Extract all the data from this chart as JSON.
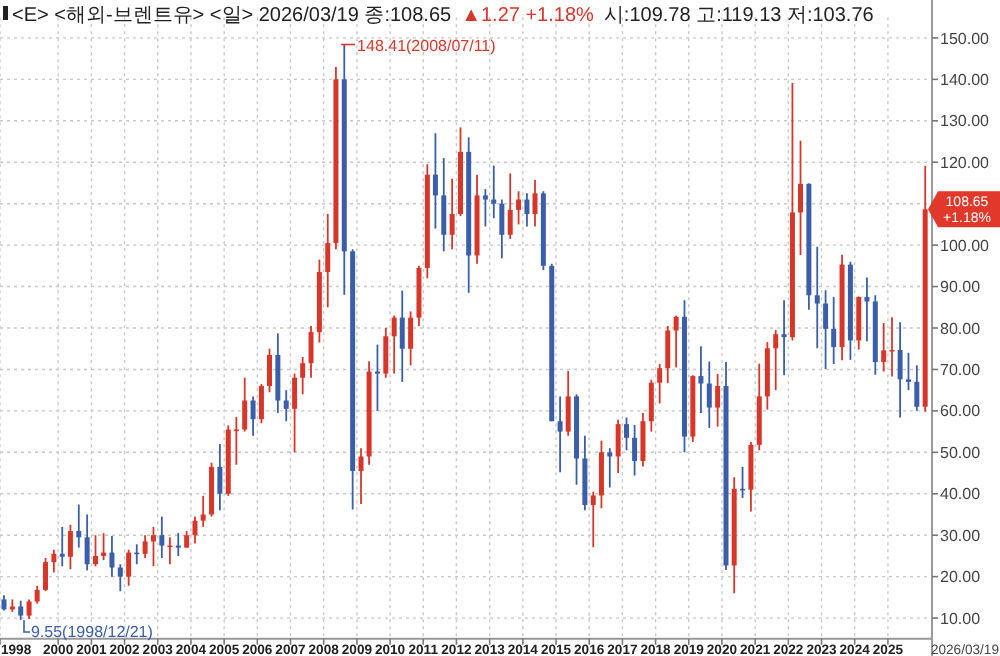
{
  "chart_data": {
    "type": "candlestick",
    "title": "<E> <해외-브렌트유> <일> 2026/03/19 종:108.65",
    "annotations": [
      "▲1.27 +1.18%",
      "시:109.78 고:119.13 저:103.76",
      "2026/03/19",
      {
        "text": "148.41(2008/07/11)",
        "x": "2008-07-11",
        "y": 148.41
      },
      {
        "text": "9.55(1998/12/21)",
        "x": "1998-12-21",
        "y": 9.55
      },
      {
        "text": "108.65 +1.18%",
        "x": "2026-03-19",
        "y": 108.65
      }
    ],
    "x": [
      "1998-05-15",
      "1998-08-15",
      "1998-11-15",
      "1999-02-15",
      "1999-05-15",
      "1999-08-15",
      "1999-11-15",
      "2000-02-15",
      "2000-05-15",
      "2000-08-15",
      "2000-11-15",
      "2001-02-15",
      "2001-05-15",
      "2001-08-15",
      "2001-11-15",
      "2002-02-15",
      "2002-05-15",
      "2002-08-15",
      "2002-11-15",
      "2003-02-15",
      "2003-05-15",
      "2003-08-15",
      "2003-11-15",
      "2004-02-15",
      "2004-05-15",
      "2004-08-15",
      "2004-11-15",
      "2005-02-15",
      "2005-05-15",
      "2005-08-15",
      "2005-11-15",
      "2006-02-15",
      "2006-05-15",
      "2006-08-15",
      "2006-11-15",
      "2007-02-15",
      "2007-05-15",
      "2007-08-15",
      "2007-11-15",
      "2008-02-15",
      "2008-05-15",
      "2008-08-15",
      "2008-11-15",
      "2009-02-15",
      "2009-05-15",
      "2009-08-15",
      "2009-11-15",
      "2010-02-15",
      "2010-05-15",
      "2010-08-15",
      "2010-11-15",
      "2011-02-15",
      "2011-05-15",
      "2011-08-15",
      "2011-11-15",
      "2012-02-15",
      "2012-05-15",
      "2012-08-15",
      "2012-11-15",
      "2013-02-15",
      "2013-05-15",
      "2013-08-15",
      "2013-11-15",
      "2014-02-15",
      "2014-05-15",
      "2014-08-15",
      "2014-11-15",
      "2015-02-15",
      "2015-05-15",
      "2015-08-15",
      "2015-11-15",
      "2016-02-15",
      "2016-05-15",
      "2016-08-15",
      "2016-11-15",
      "2017-02-15",
      "2017-05-15",
      "2017-08-15",
      "2017-11-15",
      "2018-02-15",
      "2018-05-15",
      "2018-08-15",
      "2018-11-15",
      "2019-02-15",
      "2019-05-15",
      "2019-08-15",
      "2019-11-15",
      "2020-02-15",
      "2020-05-15",
      "2020-08-15",
      "2020-11-15",
      "2021-02-15",
      "2021-05-15",
      "2021-08-15",
      "2021-11-15",
      "2022-02-15",
      "2022-05-15",
      "2022-08-15",
      "2022-11-15",
      "2023-02-15",
      "2023-05-15",
      "2023-08-15",
      "2023-11-15",
      "2024-02-15",
      "2024-05-15",
      "2024-08-15",
      "2024-11-15",
      "2025-02-15",
      "2025-05-15",
      "2025-08-15",
      "2025-11-15",
      "2026-02-15"
    ],
    "ohlc": [
      [
        14.5,
        15.5,
        11.8,
        12.1
      ],
      [
        12.1,
        14.5,
        11.5,
        12.8
      ],
      [
        12.8,
        14.2,
        9.55,
        10.6
      ],
      [
        10.6,
        14.5,
        9.8,
        14.0
      ],
      [
        14.0,
        17.8,
        13.5,
        16.8
      ],
      [
        16.8,
        24.5,
        16.5,
        23.5
      ],
      [
        23.5,
        26.5,
        21.0,
        25.5
      ],
      [
        25.5,
        32.0,
        22.5,
        24.8
      ],
      [
        24.8,
        32.5,
        21.8,
        31.0
      ],
      [
        31.0,
        37.4,
        27.0,
        29.5
      ],
      [
        29.5,
        35.0,
        21.5,
        23.0
      ],
      [
        23.0,
        30.0,
        22.5,
        25.0
      ],
      [
        25.0,
        30.5,
        24.0,
        25.8
      ],
      [
        25.8,
        29.8,
        20.0,
        22.2
      ],
      [
        22.2,
        23.0,
        16.5,
        20.0
      ],
      [
        20.0,
        26.5,
        17.8,
        25.8
      ],
      [
        25.8,
        27.8,
        23.0,
        25.5
      ],
      [
        25.5,
        30.0,
        24.5,
        28.5
      ],
      [
        28.5,
        32.0,
        22.5,
        30.0
      ],
      [
        30.0,
        34.5,
        24.5,
        27.5
      ],
      [
        27.5,
        29.5,
        23.0,
        27.5
      ],
      [
        27.5,
        30.5,
        25.0,
        27.0
      ],
      [
        27.0,
        31.0,
        27.0,
        30.0
      ],
      [
        30.0,
        34.5,
        28.0,
        33.5
      ],
      [
        33.5,
        39.5,
        32.0,
        35.0
      ],
      [
        35.0,
        47.5,
        34.5,
        46.5
      ],
      [
        46.5,
        52.0,
        36.0,
        40.0
      ],
      [
        40.0,
        56.5,
        39.5,
        55.5
      ],
      [
        55.5,
        58.5,
        47.0,
        55.5
      ],
      [
        55.5,
        68.0,
        55.0,
        62.5
      ],
      [
        62.5,
        63.5,
        54.0,
        58.0
      ],
      [
        58.0,
        66.5,
        57.0,
        66.0
      ],
      [
        66.0,
        75.0,
        64.5,
        73.5
      ],
      [
        73.5,
        78.7,
        59.5,
        62.5
      ],
      [
        62.5,
        65.0,
        57.5,
        60.5
      ],
      [
        60.5,
        69.0,
        50.0,
        68.0
      ],
      [
        68.0,
        73.0,
        64.0,
        71.5
      ],
      [
        71.5,
        80.5,
        68.0,
        79.0
      ],
      [
        79.0,
        96.5,
        76.5,
        93.5
      ],
      [
        93.5,
        107.5,
        85.0,
        100.5
      ],
      [
        100.5,
        143.0,
        99.0,
        140.0
      ],
      [
        140.0,
        148.41,
        88.0,
        98.5
      ],
      [
        98.5,
        99.0,
        36.2,
        45.5
      ],
      [
        45.5,
        51.0,
        37.5,
        49.0
      ],
      [
        49.0,
        72.0,
        47.0,
        69.5
      ],
      [
        69.5,
        76.0,
        60.0,
        69.0
      ],
      [
        69.0,
        80.0,
        68.0,
        78.0
      ],
      [
        78.0,
        83.0,
        69.0,
        82.5
      ],
      [
        82.5,
        89.0,
        67.0,
        75.0
      ],
      [
        75.0,
        84.0,
        71.0,
        82.5
      ],
      [
        82.5,
        95.0,
        80.5,
        94.5
      ],
      [
        94.5,
        119.5,
        92.0,
        117.0
      ],
      [
        117.0,
        127.0,
        104.0,
        112.0
      ],
      [
        112.0,
        121.0,
        98.5,
        102.5
      ],
      [
        102.5,
        116.0,
        99.0,
        107.5
      ],
      [
        107.5,
        128.4,
        107.0,
        122.5
      ],
      [
        122.5,
        126.0,
        88.5,
        97.5
      ],
      [
        97.5,
        117.0,
        95.5,
        112.0
      ],
      [
        112.0,
        113.5,
        104.5,
        111.0
      ],
      [
        111.0,
        119.2,
        106.5,
        110.0
      ],
      [
        110.0,
        111.0,
        96.8,
        102.5
      ],
      [
        102.5,
        117.3,
        101.5,
        108.5
      ],
      [
        108.5,
        113.0,
        105.0,
        111.0
      ],
      [
        111.0,
        112.5,
        104.5,
        107.5
      ],
      [
        107.5,
        115.7,
        104.5,
        112.5
      ],
      [
        112.5,
        113.0,
        94.0,
        95.0
      ],
      [
        95.0,
        95.5,
        57.5,
        57.5
      ],
      [
        57.5,
        63.5,
        45.2,
        55.0
      ],
      [
        55.0,
        69.6,
        54.0,
        63.5
      ],
      [
        63.5,
        64.0,
        42.2,
        48.5
      ],
      [
        48.5,
        54.0,
        36.0,
        37.3
      ],
      [
        37.3,
        40.5,
        27.1,
        39.6
      ],
      [
        39.6,
        52.8,
        36.5,
        50.0
      ],
      [
        50.0,
        51.0,
        41.5,
        49.0
      ],
      [
        49.0,
        57.9,
        45.0,
        56.8
      ],
      [
        56.8,
        58.4,
        50.5,
        53.5
      ],
      [
        53.5,
        56.6,
        44.4,
        47.9
      ],
      [
        47.9,
        59.5,
        46.6,
        57.5
      ],
      [
        57.5,
        67.5,
        55.0,
        66.8
      ],
      [
        66.8,
        71.3,
        61.8,
        70.3
      ],
      [
        70.3,
        80.5,
        66.7,
        79.4
      ],
      [
        79.4,
        83.0,
        70.5,
        82.7
      ],
      [
        82.7,
        86.7,
        50.0,
        53.8
      ],
      [
        53.8,
        68.6,
        52.5,
        68.4
      ],
      [
        68.4,
        75.6,
        59.5,
        66.6
      ],
      [
        66.6,
        71.9,
        55.9,
        60.8
      ],
      [
        60.8,
        68.9,
        56.2,
        66.0
      ],
      [
        66.0,
        71.8,
        21.6,
        22.7
      ],
      [
        22.7,
        44.0,
        16.0,
        41.2
      ],
      [
        41.2,
        46.5,
        39.0,
        41.0
      ],
      [
        41.0,
        52.5,
        35.7,
        51.8
      ],
      [
        51.8,
        71.4,
        50.5,
        63.5
      ],
      [
        63.5,
        76.6,
        60.3,
        75.1
      ],
      [
        75.1,
        79.5,
        65.0,
        78.5
      ],
      [
        78.5,
        86.7,
        68.6,
        77.8
      ],
      [
        77.8,
        139.13,
        77.0,
        107.9
      ],
      [
        107.9,
        125.2,
        97.6,
        114.8
      ],
      [
        114.8,
        114.9,
        84.4,
        87.9
      ],
      [
        87.9,
        99.6,
        75.1,
        85.9
      ],
      [
        85.9,
        89.1,
        70.1,
        79.8
      ],
      [
        79.8,
        87.5,
        71.3,
        75.4
      ],
      [
        75.4,
        97.7,
        72.2,
        95.3
      ],
      [
        95.3,
        96.0,
        72.3,
        77.0
      ],
      [
        77.0,
        87.6,
        74.8,
        87.5
      ],
      [
        87.5,
        92.2,
        76.8,
        86.4
      ],
      [
        86.4,
        87.9,
        68.7,
        71.8
      ],
      [
        71.8,
        81.2,
        69.5,
        74.6
      ],
      [
        74.6,
        82.6,
        68.3,
        74.7
      ],
      [
        74.7,
        81.4,
        58.4,
        67.6
      ],
      [
        67.6,
        74.0,
        65.0,
        67.0
      ],
      [
        67.0,
        71.0,
        60.0,
        61.0
      ],
      [
        61.0,
        119.13,
        59.8,
        108.65
      ]
    ],
    "colors": [
      "#3b5ea8",
      "#d7372b",
      "#3b5ea8",
      "#d7372b",
      "#d7372b",
      "#d7372b",
      "#d7372b",
      "#3b5ea8",
      "#d7372b",
      "#3b5ea8",
      "#3b5ea8",
      "#d7372b",
      "#d7372b",
      "#3b5ea8",
      "#3b5ea8",
      "#d7372b",
      "#3b5ea8",
      "#d7372b",
      "#d7372b",
      "#3b5ea8",
      "#d7372b",
      "#3b5ea8",
      "#d7372b",
      "#d7372b",
      "#d7372b",
      "#d7372b",
      "#3b5ea8",
      "#d7372b",
      "#d7372b",
      "#d7372b",
      "#3b5ea8",
      "#d7372b",
      "#d7372b",
      "#3b5ea8",
      "#3b5ea8",
      "#d7372b",
      "#d7372b",
      "#d7372b",
      "#d7372b",
      "#d7372b",
      "#d7372b",
      "#3b5ea8",
      "#3b5ea8",
      "#d7372b",
      "#d7372b",
      "#3b5ea8",
      "#d7372b",
      "#d7372b",
      "#3b5ea8",
      "#d7372b",
      "#d7372b",
      "#d7372b",
      "#3b5ea8",
      "#3b5ea8",
      "#d7372b",
      "#d7372b",
      "#3b5ea8",
      "#d7372b",
      "#3b5ea8",
      "#3b5ea8",
      "#3b5ea8",
      "#d7372b",
      "#d7372b",
      "#3b5ea8",
      "#d7372b",
      "#3b5ea8",
      "#3b5ea8",
      "#3b5ea8",
      "#d7372b",
      "#3b5ea8",
      "#3b5ea8",
      "#d7372b",
      "#d7372b",
      "#3b5ea8",
      "#d7372b",
      "#3b5ea8",
      "#3b5ea8",
      "#d7372b",
      "#d7372b",
      "#d7372b",
      "#d7372b",
      "#d7372b",
      "#3b5ea8",
      "#d7372b",
      "#3b5ea8",
      "#3b5ea8",
      "#d7372b",
      "#3b5ea8",
      "#d7372b",
      "#3b5ea8",
      "#d7372b",
      "#d7372b",
      "#d7372b",
      "#d7372b",
      "#3b5ea8",
      "#d7372b",
      "#d7372b",
      "#3b5ea8",
      "#3b5ea8",
      "#3b5ea8",
      "#3b5ea8",
      "#d7372b",
      "#3b5ea8",
      "#d7372b",
      "#3b5ea8",
      "#3b5ea8",
      "#d7372b",
      "#d7372b",
      "#3b5ea8",
      "#3b5ea8",
      "#3b5ea8",
      "#d7372b"
    ],
    "xlim": [
      "1998-04-01",
      "2026-05-01"
    ],
    "xticks": [
      {
        "value": "1998-04-01",
        "label": "1998"
      },
      {
        "value": "2000-01-01",
        "label": "2000"
      },
      {
        "value": "2001-01-01",
        "label": "2001"
      },
      {
        "value": "2002-01-01",
        "label": "2002"
      },
      {
        "value": "2003-01-01",
        "label": "2003"
      },
      {
        "value": "2004-01-01",
        "label": "2004"
      },
      {
        "value": "2005-01-01",
        "label": "2005"
      },
      {
        "value": "2006-01-01",
        "label": "2006"
      },
      {
        "value": "2007-01-01",
        "label": "2007"
      },
      {
        "value": "2008-01-01",
        "label": "2008"
      },
      {
        "value": "2009-01-01",
        "label": "2009"
      },
      {
        "value": "2010-01-01",
        "label": "2010"
      },
      {
        "value": "2011-01-01",
        "label": "2011"
      },
      {
        "value": "2012-01-01",
        "label": "2012"
      },
      {
        "value": "2013-01-01",
        "label": "2013"
      },
      {
        "value": "2014-01-01",
        "label": "2014"
      },
      {
        "value": "2015-01-01",
        "label": "2015"
      },
      {
        "value": "2016-01-01",
        "label": "2016"
      },
      {
        "value": "2017-01-01",
        "label": "2017"
      },
      {
        "value": "2018-01-01",
        "label": "2018"
      },
      {
        "value": "2019-01-01",
        "label": "2019"
      },
      {
        "value": "2020-01-01",
        "label": "2020"
      },
      {
        "value": "2021-01-01",
        "label": "2021"
      },
      {
        "value": "2022-01-01",
        "label": "2022"
      },
      {
        "value": "2023-01-01",
        "label": "2023"
      },
      {
        "value": "2024-01-01",
        "label": "2024"
      },
      {
        "value": "2025-01-01",
        "label": "2025"
      }
    ],
    "ylim": [
      5,
      155
    ],
    "yticks": [
      {
        "value": 10,
        "label": "10.00"
      },
      {
        "value": 20,
        "label": "20.00"
      },
      {
        "value": 30,
        "label": "30.00"
      },
      {
        "value": 40,
        "label": "40.00"
      },
      {
        "value": 50,
        "label": "50.00"
      },
      {
        "value": 60,
        "label": "60.00"
      },
      {
        "value": 70,
        "label": "70.00"
      },
      {
        "value": 80,
        "label": "80.00"
      },
      {
        "value": 90,
        "label": "90.00"
      },
      {
        "value": 100,
        "label": "100.00"
      },
      {
        "value": 110,
        "label": null
      },
      {
        "value": 120,
        "label": "120.00"
      },
      {
        "value": 130,
        "label": "130.00"
      },
      {
        "value": 140,
        "label": "140.00"
      },
      {
        "value": 150,
        "label": "150.00"
      }
    ],
    "grid": true
  }
}
